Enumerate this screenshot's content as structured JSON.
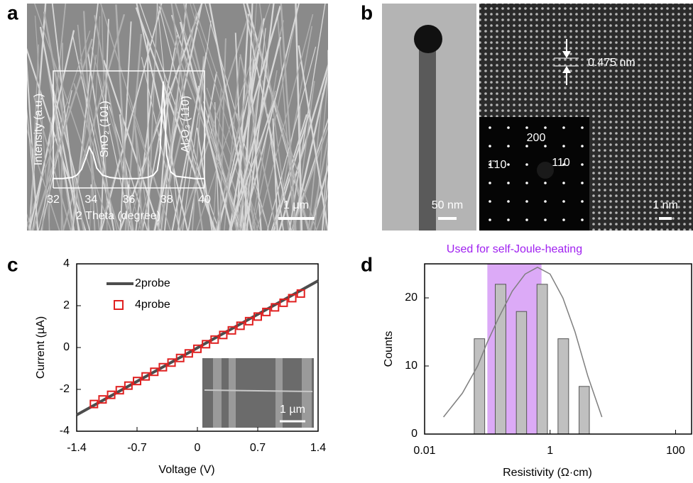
{
  "panels": {
    "a": {
      "label": "a",
      "scale_bar": "1 µm"
    },
    "b": {
      "label": "b",
      "spacing": "0.475 nm",
      "spot_200": "200",
      "spot_1bar10": "1̄10",
      "spot_110": "110",
      "scale_bar_left": "50 nm",
      "scale_bar_right": "1 nm"
    },
    "c": {
      "label": "c",
      "inset_scale_bar": "1 µm"
    },
    "d": {
      "label": "d"
    }
  },
  "chart_data": [
    {
      "type": "line",
      "xlabel": "2 Theta (degree)",
      "ylabel": "Intensity (a.u.)",
      "annotations": [
        "SnO₂ (101)",
        "Al₂O₃ (110)"
      ],
      "x": [
        32,
        32.5,
        33,
        33.25,
        33.5,
        33.75,
        33.9,
        34.1,
        34.3,
        34.6,
        35,
        35.5,
        36,
        36.5,
        37,
        37.3,
        37.5,
        37.65,
        37.75,
        37.82,
        37.9,
        38,
        38.2,
        38.5,
        39,
        39.5,
        40
      ],
      "series": [
        {
          "color": "#ffffff",
          "values": [
            8,
            8,
            9,
            11,
            16,
            27,
            35,
            29,
            17,
            11,
            9,
            8,
            8,
            8,
            9,
            11,
            15,
            30,
            70,
            91,
            60,
            28,
            14,
            10,
            9,
            8,
            8
          ]
        }
      ],
      "xlim": [
        32,
        40
      ],
      "xticks": [
        32,
        34,
        36,
        38,
        40
      ],
      "ylim": [
        0,
        100
      ]
    },
    {
      "type": "line",
      "xlabel": "Voltage (V)",
      "ylabel": "Current (µA)",
      "legend": "upper left",
      "series": [
        {
          "name": "2probe",
          "type": "line",
          "color": "#4d4d4d",
          "x": [
            -1.4,
            1.4
          ],
          "values": [
            -3.22,
            3.19
          ]
        },
        {
          "name": "4probe",
          "type": "scatter",
          "color": "#e02020",
          "x": [
            -1.2,
            -1.1,
            -1.0,
            -0.9,
            -0.8,
            -0.7,
            -0.6,
            -0.5,
            -0.4,
            -0.3,
            -0.2,
            -0.1,
            0,
            0.1,
            0.2,
            0.3,
            0.4,
            0.5,
            0.6,
            0.7,
            0.8,
            0.9,
            1.0,
            1.1,
            1.2
          ],
          "values": [
            -2.7,
            -2.48,
            -2.26,
            -2.04,
            -1.82,
            -1.6,
            -1.38,
            -1.16,
            -0.94,
            -0.72,
            -0.5,
            -0.28,
            -0.06,
            0.16,
            0.38,
            0.6,
            0.82,
            1.04,
            1.26,
            1.48,
            1.7,
            1.92,
            2.14,
            2.36,
            2.58
          ]
        }
      ],
      "xlim": [
        -1.4,
        1.4
      ],
      "xticks": [
        -1.4,
        -0.7,
        0,
        0.7,
        1.4
      ],
      "ylim": [
        -4,
        4
      ],
      "yticks": [
        -4,
        -2,
        0,
        2,
        4
      ]
    },
    {
      "type": "histogram",
      "xlabel": "Resistivity (Ω·cm)",
      "ylabel": "Counts",
      "xlog": true,
      "bins": [
        0.051,
        0.11,
        0.24,
        0.51,
        1.1,
        2.4,
        5.1
      ],
      "values": [
        14,
        22,
        18,
        22,
        14,
        7
      ],
      "color": "#c0c0c0",
      "fit": {
        "color": "#7f7f7f",
        "x": [
          0.02,
          0.04,
          0.07,
          0.1,
          0.15,
          0.25,
          0.4,
          0.63,
          1,
          1.6,
          2.5,
          4,
          6.7
        ],
        "values": [
          2.5,
          6,
          10,
          13.5,
          17,
          21,
          23.5,
          24.5,
          23.5,
          20,
          15,
          8.5,
          2.5
        ]
      },
      "annotations": [
        {
          "text": "Used for self-Joule-heating",
          "x_range": [
            0.1,
            0.73
          ],
          "color": "#a020f0",
          "fill": "#dcaaf7"
        }
      ],
      "xlim": [
        0.01,
        180
      ],
      "xticks": [
        0.01,
        1,
        100
      ],
      "ylim": [
        0,
        25
      ],
      "yticks": [
        0,
        10,
        20
      ]
    }
  ]
}
